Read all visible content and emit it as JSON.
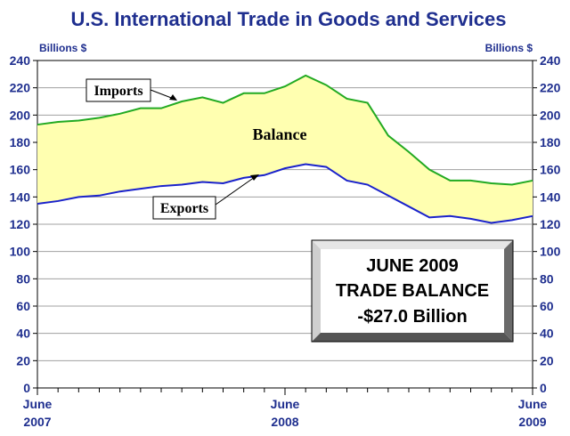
{
  "chart_data": {
    "type": "area",
    "title": "U.S. International Trade in Goods and Services",
    "ylabel_left": "Billions $",
    "ylabel_right": "Billions $",
    "ylim": [
      0,
      240
    ],
    "yticks": [
      0,
      20,
      40,
      60,
      80,
      100,
      120,
      140,
      160,
      180,
      200,
      220,
      240
    ],
    "x_tick_labels": [
      {
        "index": 0,
        "line1": "June",
        "line2": "2007"
      },
      {
        "index": 12,
        "line1": "June",
        "line2": "2008"
      },
      {
        "index": 24,
        "line1": "June",
        "line2": "2009"
      }
    ],
    "series": [
      {
        "name": "Imports",
        "color": "#22aa22",
        "values": [
          193,
          195,
          196,
          198,
          201,
          205,
          205,
          210,
          213,
          209,
          216,
          216,
          221,
          229,
          222,
          212,
          209,
          185,
          173,
          160,
          152,
          152,
          150,
          149,
          152
        ]
      },
      {
        "name": "Exports",
        "color": "#1a22cc",
        "values": [
          135,
          137,
          140,
          141,
          144,
          146,
          148,
          149,
          151,
          150,
          154,
          156,
          161,
          164,
          162,
          152,
          149,
          141,
          133,
          125,
          126,
          124,
          121,
          123,
          126
        ]
      }
    ],
    "fill_between": {
      "label": "Balance",
      "color": "#ffffb0"
    },
    "annotations": {
      "imports_label": "Imports",
      "exports_label": "Exports",
      "balance_label": "Balance"
    },
    "summary_box": {
      "line1": "JUNE 2009",
      "line2": "TRADE BALANCE",
      "line3": "-$27.0 Billion"
    },
    "grid": true
  }
}
